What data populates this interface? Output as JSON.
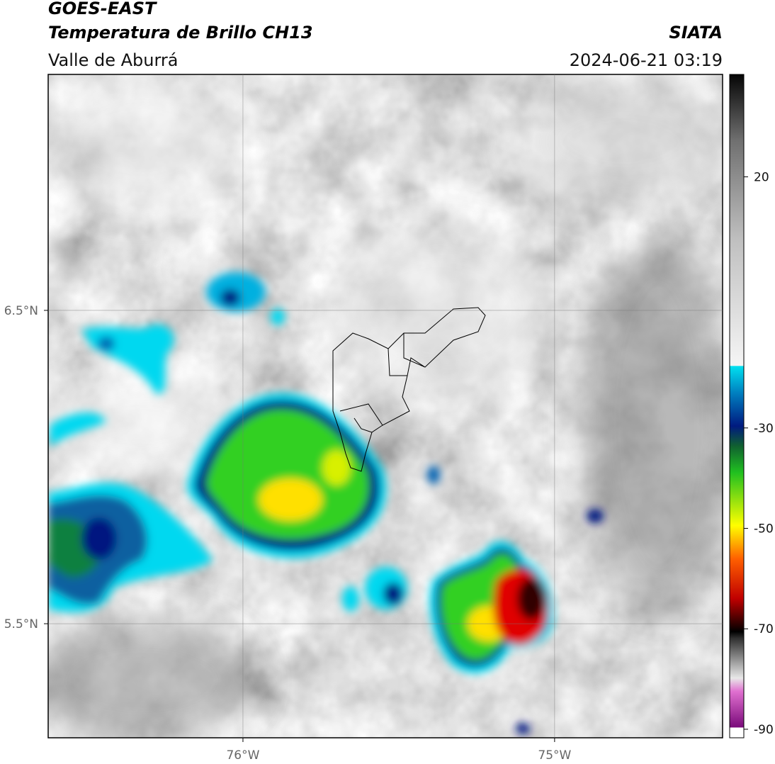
{
  "header": {
    "title": "GOES-EAST",
    "subtitle": "Temperatura de Brillo CH13",
    "region": "Valle de Aburrá",
    "source": "SIATA",
    "datetime": "2024-06-21 03:19"
  },
  "map": {
    "xlim": [
      -76.625,
      -74.461
    ],
    "ylim": [
      5.136,
      7.253
    ],
    "xticks": [
      {
        "value": -76,
        "label": "76°W"
      },
      {
        "value": -75,
        "label": "75°W"
      }
    ],
    "yticks": [
      {
        "value": 6.5,
        "label": "6.5°N"
      },
      {
        "value": 5.5,
        "label": "5.5°N"
      }
    ]
  },
  "colorbar": {
    "lim": [
      -91.7,
      40.4
    ],
    "ticks": [
      20,
      -30,
      -50,
      -70,
      -90
    ]
  }
}
